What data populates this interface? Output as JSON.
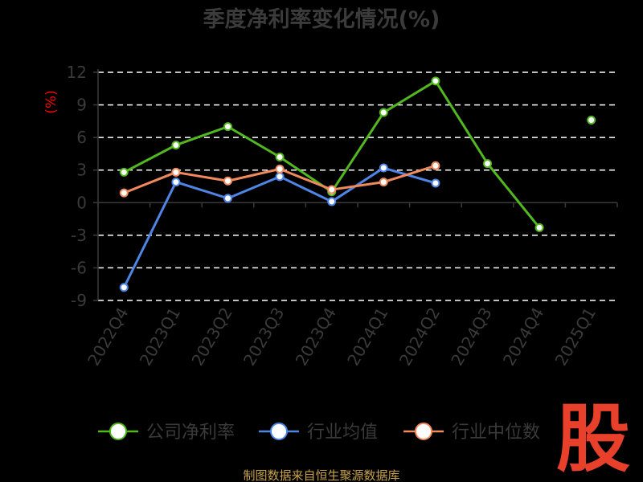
{
  "chart_data": {
    "type": "line",
    "title": "季度净利率变化情况(%)",
    "ylabel": "(%)",
    "categories": [
      "2022Q4",
      "2023Q1",
      "2023Q2",
      "2023Q3",
      "2023Q4",
      "2024Q1",
      "2024Q2",
      "2024Q3",
      "2024Q4",
      "2025Q1"
    ],
    "ylim": [
      -9,
      12
    ],
    "yticks": [
      12,
      9,
      6,
      3,
      0,
      -3,
      -6,
      -9
    ],
    "grid": true,
    "legend_position": "bottom",
    "series": [
      {
        "name": "公司净利率",
        "color": "#52b81f",
        "values": [
          2.8,
          5.3,
          7.0,
          4.2,
          1.0,
          8.3,
          11.2,
          3.6,
          -2.3,
          7.6
        ],
        "breaks_after": [
          8
        ]
      },
      {
        "name": "行业均值",
        "color": "#4f86e6",
        "values": [
          -7.8,
          1.9,
          0.4,
          2.4,
          0.1,
          3.2,
          1.8,
          null,
          null,
          null
        ]
      },
      {
        "name": "行业中位数",
        "color": "#f08a5d",
        "values": [
          0.9,
          2.8,
          2.0,
          3.1,
          1.2,
          1.9,
          3.4,
          null,
          null,
          null
        ]
      }
    ]
  },
  "source_note": "制图数据来自恒生聚源数据库",
  "logo_text": "股"
}
